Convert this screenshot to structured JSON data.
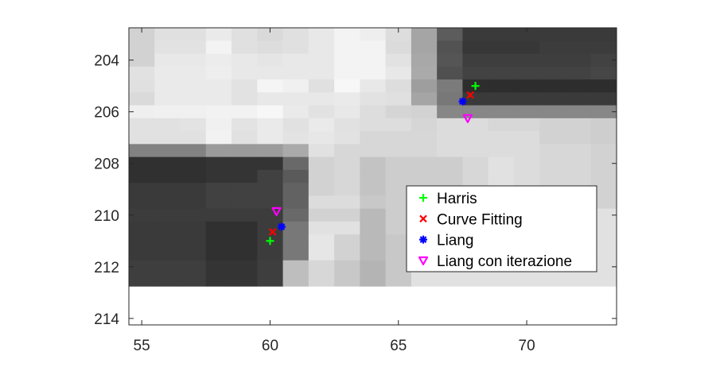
{
  "chart_data": {
    "type": "heatmap",
    "title": "",
    "xlabel": "",
    "ylabel": "",
    "xlim": [
      54.5,
      73.5
    ],
    "ylim": [
      214.25,
      202.75
    ],
    "y_direction": "reversed",
    "grid": false,
    "colormap": "gray",
    "x_ticks": [
      55,
      60,
      65,
      70
    ],
    "x_tick_labels": [
      "55",
      "60",
      "65",
      "70"
    ],
    "y_ticks": [
      204,
      206,
      208,
      210,
      212,
      214
    ],
    "y_tick_labels": [
      "204",
      "206",
      "208",
      "210",
      "212",
      "214"
    ],
    "image": {
      "x_start": 55,
      "y_start": 203,
      "rows": [
        [
          210,
          224,
          224,
          234,
          224,
          217,
          224,
          232,
          243,
          238,
          221,
          165,
          92,
          58,
          58,
          58,
          58,
          58,
          58
        ],
        [
          210,
          226,
          226,
          243,
          224,
          221,
          224,
          232,
          243,
          243,
          219,
          165,
          82,
          55,
          55,
          55,
          60,
          60,
          60
        ],
        [
          210,
          232,
          232,
          236,
          232,
          229,
          232,
          232,
          243,
          243,
          226,
          168,
          85,
          62,
          62,
          62,
          62,
          62,
          66
        ],
        [
          225,
          234,
          234,
          238,
          232,
          232,
          232,
          232,
          243,
          243,
          232,
          170,
          80,
          66,
          66,
          66,
          66,
          66,
          70
        ],
        [
          224,
          234,
          234,
          234,
          226,
          245,
          240,
          224,
          247,
          232,
          221,
          158,
          123,
          45,
          45,
          45,
          45,
          45,
          45
        ],
        [
          218,
          234,
          234,
          234,
          226,
          232,
          232,
          232,
          234,
          226,
          224,
          165,
          120,
          58,
          58,
          58,
          58,
          58,
          58
        ],
        [
          239,
          240,
          240,
          242,
          242,
          247,
          234,
          226,
          232,
          221,
          213,
          210,
          135,
          135,
          135,
          135,
          135,
          135,
          135
        ],
        [
          225,
          225,
          227,
          240,
          227,
          234,
          225,
          234,
          225,
          221,
          221,
          214,
          220,
          220,
          215,
          215,
          210,
          210,
          206
        ],
        [
          225,
          225,
          225,
          242,
          225,
          234,
          227,
          231,
          226,
          215,
          215,
          215,
          220,
          220,
          220,
          220,
          210,
          210,
          206
        ],
        [
          130,
          130,
          130,
          155,
          155,
          155,
          170,
          225,
          215,
          215,
          215,
          215,
          220,
          220,
          220,
          220,
          215,
          215,
          210
        ],
        [
          48,
          48,
          48,
          52,
          52,
          52,
          105,
          210,
          215,
          195,
          205,
          205,
          205,
          215,
          225,
          220,
          215,
          215,
          210
        ],
        [
          48,
          48,
          48,
          52,
          52,
          65,
          90,
          210,
          215,
          195,
          205,
          205,
          205,
          215,
          225,
          220,
          215,
          215,
          210
        ],
        [
          58,
          58,
          58,
          65,
          65,
          65,
          98,
          210,
          215,
          195,
          205,
          205,
          205,
          215,
          225,
          220,
          215,
          215,
          210
        ],
        [
          58,
          58,
          58,
          65,
          65,
          65,
          98,
          220,
          220,
          200,
          205,
          205,
          205,
          215,
          225,
          220,
          215,
          215,
          210
        ],
        [
          60,
          60,
          60,
          60,
          60,
          60,
          105,
          210,
          210,
          185,
          205,
          205,
          205,
          215,
          225,
          225,
          225,
          225,
          225
        ],
        [
          58,
          58,
          58,
          48,
          48,
          60,
          120,
          225,
          225,
          185,
          205,
          205,
          205,
          215,
          225,
          225,
          225,
          225,
          225
        ],
        [
          58,
          58,
          58,
          48,
          48,
          60,
          120,
          230,
          210,
          185,
          200,
          200,
          200,
          215,
          225,
          225,
          225,
          225,
          225
        ],
        [
          58,
          58,
          58,
          48,
          48,
          60,
          120,
          230,
          210,
          185,
          200,
          200,
          200,
          215,
          225,
          225,
          225,
          225,
          225
        ],
        [
          62,
          62,
          62,
          52,
          52,
          62,
          190,
          215,
          200,
          180,
          200,
          225,
          225,
          225,
          225,
          225,
          225,
          225,
          225
        ],
        [
          62,
          62,
          62,
          52,
          52,
          62,
          190,
          215,
          200,
          180,
          200,
          225,
          225,
          225,
          225,
          225,
          225,
          225,
          225
        ]
      ]
    },
    "series": [
      {
        "name": "Harris",
        "marker": "plus",
        "color": "#00ff00",
        "points": [
          [
            68.0,
            205.0
          ],
          [
            60.0,
            211.0
          ]
        ]
      },
      {
        "name": "Curve Fitting",
        "marker": "x",
        "color": "#ff0000",
        "points": [
          [
            67.8,
            205.35
          ],
          [
            60.1,
            210.65
          ]
        ]
      },
      {
        "name": "Liang",
        "marker": "asterisk",
        "color": "#0000ff",
        "points": [
          [
            67.5,
            205.6
          ],
          [
            60.45,
            210.45
          ]
        ]
      },
      {
        "name": "Liang con iterazione",
        "marker": "triangle-down",
        "color": "#ff00ff",
        "points": [
          [
            67.7,
            206.25
          ],
          [
            60.25,
            209.85
          ]
        ]
      }
    ],
    "legend": {
      "position": "center-right",
      "entries": [
        "Harris",
        "Curve Fitting",
        "Liang",
        "Liang con iterazione"
      ]
    }
  }
}
